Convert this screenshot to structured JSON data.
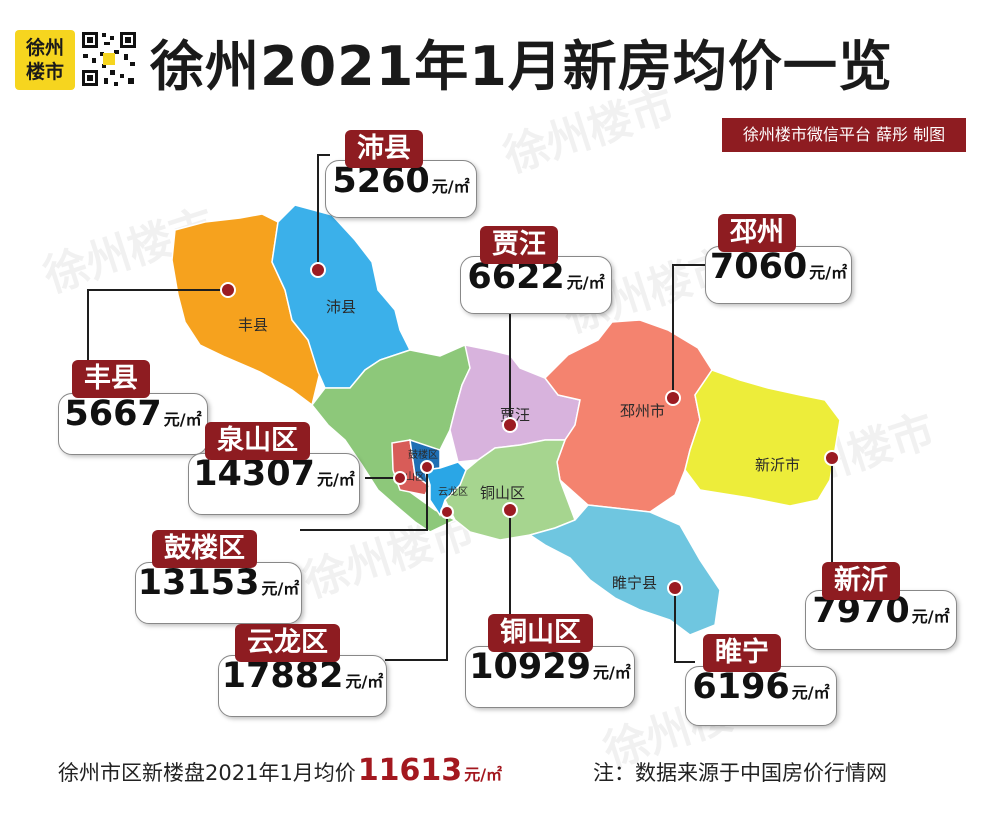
{
  "header": {
    "logo_line1": "徐州",
    "logo_line2": "楼市",
    "title": "徐州2021年1月新房均价一览",
    "credit": "徐州楼市微信平台 薛彤 制图"
  },
  "watermark_text": "徐州楼市",
  "unit": "元/㎡",
  "map_labels": {
    "fengxian": "丰县",
    "peixian": "沛县",
    "jiawang": "贾汪",
    "pizhou": "邳州市",
    "xinyi": "新沂市",
    "tongshan": "铜山区",
    "suining": "睢宁县",
    "gulou": "鼓楼区",
    "quanshan": "泉山区",
    "yunlong": "云龙区"
  },
  "callouts": {
    "peixian": {
      "name": "沛县",
      "price": "5260"
    },
    "jiawang": {
      "name": "贾汪",
      "price": "6622"
    },
    "pizhou": {
      "name": "邳州",
      "price": "7060"
    },
    "fengxian": {
      "name": "丰县",
      "price": "5667"
    },
    "quanshan": {
      "name": "泉山区",
      "price": "14307"
    },
    "gulou": {
      "name": "鼓楼区",
      "price": "13153"
    },
    "yunlong": {
      "name": "云龙区",
      "price": "17882"
    },
    "tongshan": {
      "name": "铜山区",
      "price": "10929"
    },
    "suining": {
      "name": "睢宁",
      "price": "6196"
    },
    "xinyi": {
      "name": "新沂",
      "price": "7970"
    }
  },
  "colors": {
    "fengxian": "#f6a21e",
    "peixian": "#3bb0ea",
    "west_green": "#8dc87a",
    "jiawang": "#d8b3dd",
    "pizhou": "#f4836f",
    "xinyi": "#eded3a",
    "tongshan": "#a6d58f",
    "suining": "#6fc6e0",
    "quanshan": "#d85c58",
    "gulou": "#1f6fb4",
    "yunlong": "#2aa6e6",
    "accent": "#8e1c21"
  },
  "footer": {
    "text": "徐州市区新楼盘2021年1月均价",
    "avg": "11613",
    "avg_unit": "元/㎡",
    "note": "注：数据来源于中国房价行情网"
  }
}
